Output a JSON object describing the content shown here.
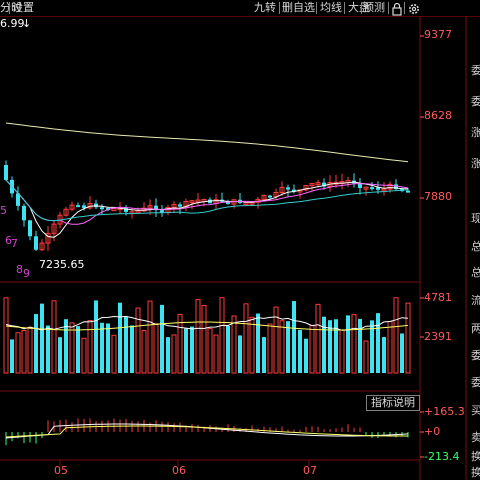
{
  "toolbar": {
    "left_items": [
      "分时",
      "设置"
    ],
    "right_items": [
      "九转",
      "删自选",
      "均线",
      "大盘",
      "预测"
    ],
    "lock_icon": "lock-icon",
    "settings_icon": "gear-icon"
  },
  "high_label": "6.99",
  "low_label": "7235.65",
  "kline_axis": [
    "9377",
    "8628",
    "7880"
  ],
  "volume_axis": [
    "4781",
    "2391"
  ],
  "macd_axis": [
    "+165.3",
    "+0",
    "-213.4"
  ],
  "indicator_button": "指标说明",
  "month_labels": [
    "05",
    "06",
    "07"
  ],
  "side_labels": [
    "委",
    "委",
    "涨",
    "涨",
    "现",
    "总",
    "总",
    "流",
    "两",
    "委",
    "委",
    "买",
    "卖",
    "换",
    "换"
  ],
  "wave_labels": [
    "5",
    "6",
    "7",
    "8",
    "9"
  ],
  "colors": {
    "up": "#ff3b3b",
    "down": "#3de3f0",
    "ma1": "#ffffff",
    "ma2": "#ffff66",
    "ma3": "#ff66ff",
    "ma4": "#33cccc",
    "axis_text": "#ff5a5a",
    "grid": "#7a0a0a"
  }
}
